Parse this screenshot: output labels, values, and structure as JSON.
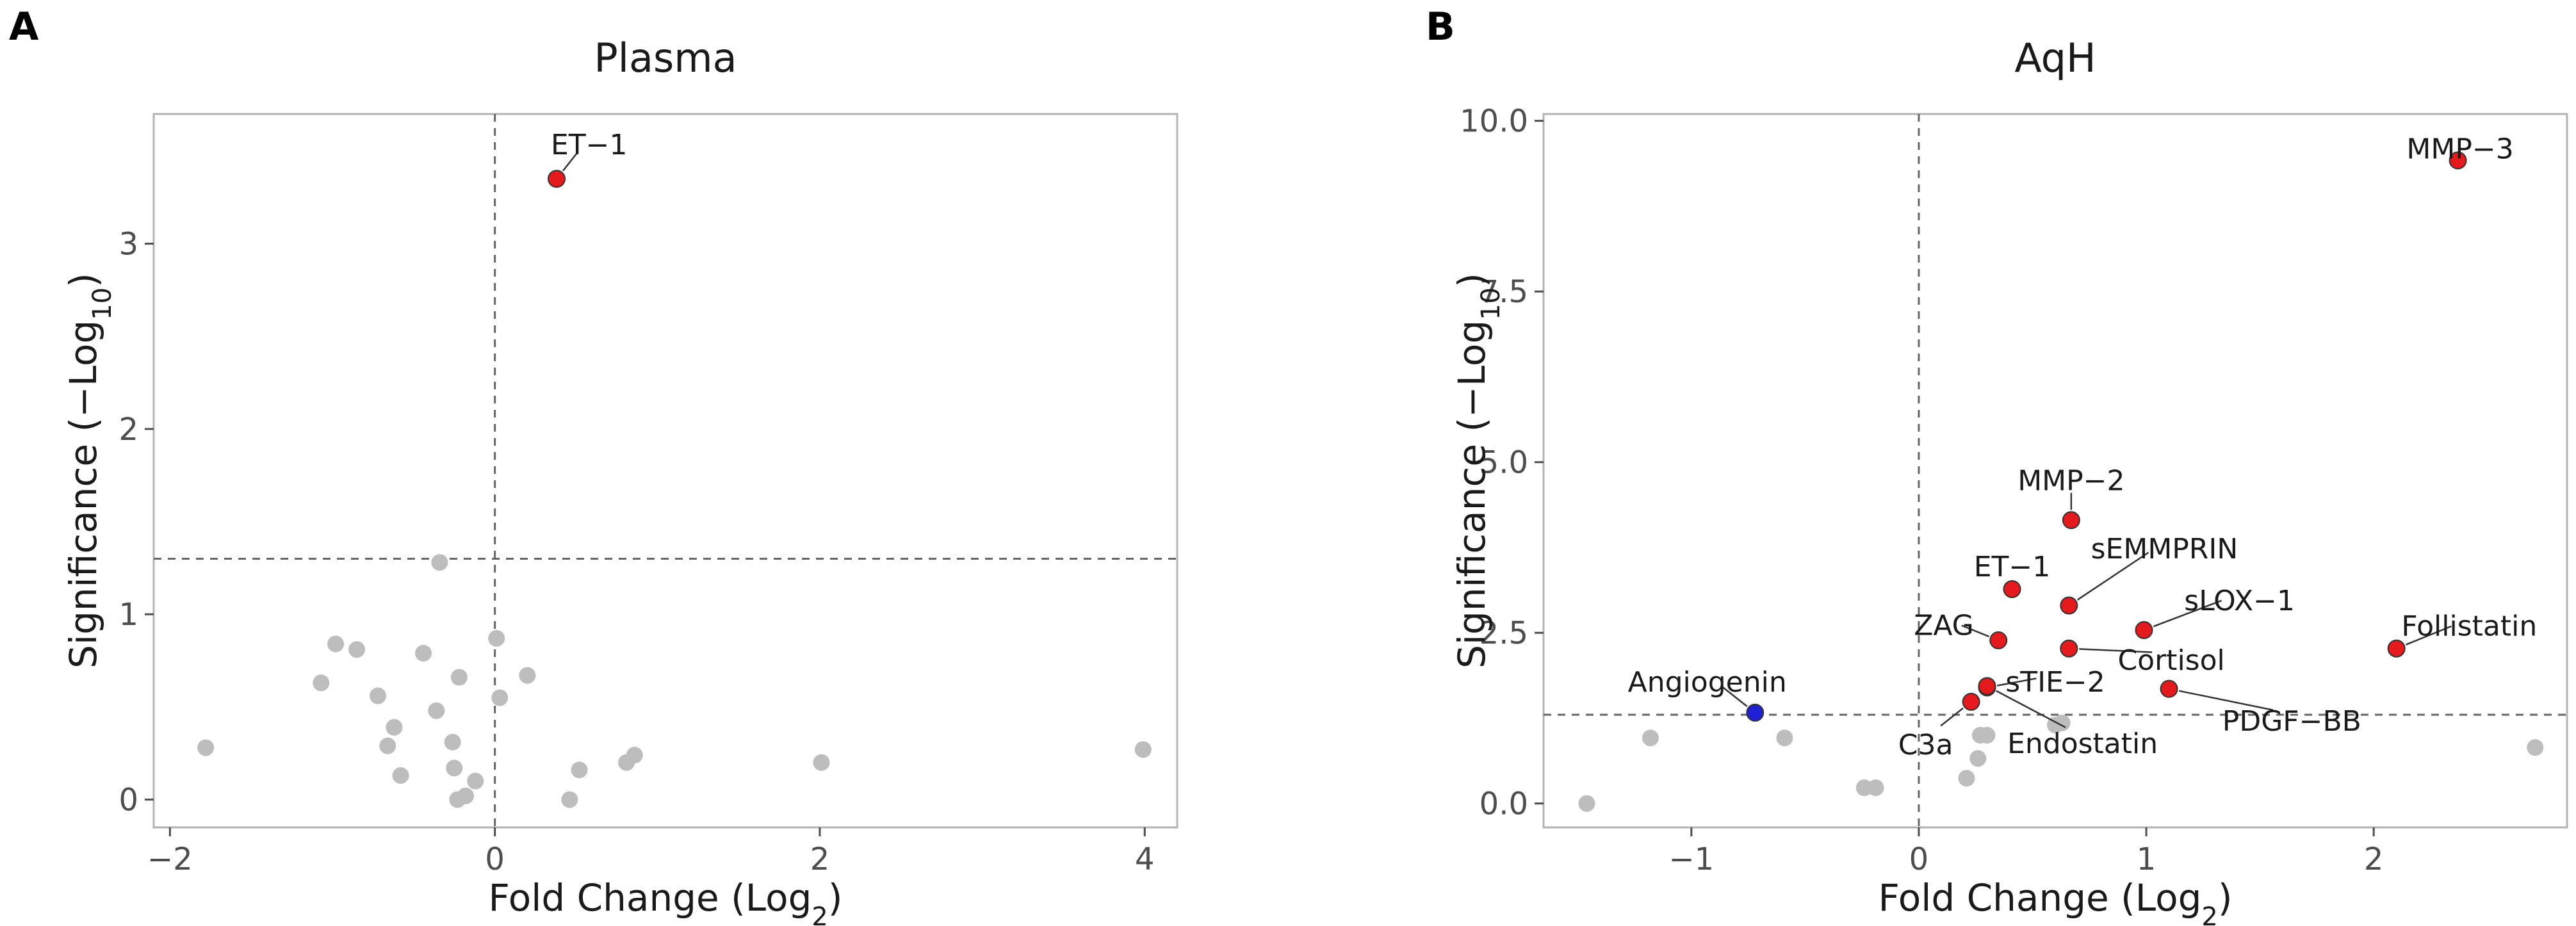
{
  "chart_data": [
    {
      "type": "scatter",
      "panel": "A",
      "title": "Plasma",
      "xlabel": "Fold Change (Log",
      "xlabel_sub": "2",
      "ylabel": "Significance (−Log",
      "ylabel_sub": "10",
      "xlim": [
        -2.1,
        4.2
      ],
      "ylim": [
        -0.15,
        3.7
      ],
      "xticks": [
        -2,
        0,
        2,
        4
      ],
      "yticks": [
        0,
        1,
        2,
        3
      ],
      "xtick_labels": [
        "−2",
        "0",
        "2",
        "4"
      ],
      "ytick_labels": [
        "0",
        "1",
        "2",
        "3"
      ],
      "hline": 1.3,
      "vline": 0,
      "grid": false,
      "colors": {
        "ns": "#bdbdbd",
        "up": "#e41a1c",
        "down": "#1f1fd6"
      },
      "points": [
        {
          "x": 0.38,
          "y": 3.35,
          "group": "up",
          "label": "ET−1",
          "lx": 0.58,
          "ly": 3.53
        },
        {
          "x": -1.78,
          "y": 0.28,
          "group": "ns"
        },
        {
          "x": -1.07,
          "y": 0.63,
          "group": "ns"
        },
        {
          "x": -0.98,
          "y": 0.84,
          "group": "ns"
        },
        {
          "x": -0.85,
          "y": 0.81,
          "group": "ns"
        },
        {
          "x": -0.72,
          "y": 0.56,
          "group": "ns"
        },
        {
          "x": -0.66,
          "y": 0.29,
          "group": "ns"
        },
        {
          "x": -0.62,
          "y": 0.39,
          "group": "ns"
        },
        {
          "x": -0.58,
          "y": 0.13,
          "group": "ns"
        },
        {
          "x": -0.44,
          "y": 0.79,
          "group": "ns"
        },
        {
          "x": -0.36,
          "y": 0.48,
          "group": "ns"
        },
        {
          "x": -0.34,
          "y": 1.28,
          "group": "ns"
        },
        {
          "x": -0.26,
          "y": 0.31,
          "group": "ns"
        },
        {
          "x": -0.25,
          "y": 0.17,
          "group": "ns"
        },
        {
          "x": -0.22,
          "y": 0.66,
          "group": "ns"
        },
        {
          "x": -0.23,
          "y": 0.0,
          "group": "ns"
        },
        {
          "x": -0.18,
          "y": 0.02,
          "group": "ns"
        },
        {
          "x": -0.12,
          "y": 0.1,
          "group": "ns"
        },
        {
          "x": 0.01,
          "y": 0.87,
          "group": "ns"
        },
        {
          "x": 0.03,
          "y": 0.55,
          "group": "ns"
        },
        {
          "x": 0.2,
          "y": 0.67,
          "group": "ns"
        },
        {
          "x": 0.46,
          "y": 0.0,
          "group": "ns"
        },
        {
          "x": 0.52,
          "y": 0.16,
          "group": "ns"
        },
        {
          "x": 0.81,
          "y": 0.2,
          "group": "ns"
        },
        {
          "x": 0.86,
          "y": 0.24,
          "group": "ns"
        },
        {
          "x": 2.01,
          "y": 0.2,
          "group": "ns"
        },
        {
          "x": 3.99,
          "y": 0.27,
          "group": "ns"
        }
      ]
    },
    {
      "type": "scatter",
      "panel": "B",
      "title": "AqH",
      "xlabel": "Fold Change (Log",
      "xlabel_sub": "2",
      "ylabel": "Significance (−Log",
      "ylabel_sub": "10",
      "xlim": [
        -1.65,
        2.85
      ],
      "ylim": [
        -0.35,
        10.1
      ],
      "xticks": [
        -1,
        0,
        1,
        2
      ],
      "yticks": [
        0,
        2.5,
        5,
        7.5,
        10
      ],
      "xtick_labels": [
        "−1",
        "0",
        "1",
        "2"
      ],
      "ytick_labels": [
        "0.0",
        "2.5",
        "5.0",
        "7.5",
        "10.0"
      ],
      "hline": 1.3,
      "vline": 0,
      "grid": false,
      "colors": {
        "ns": "#bdbdbd",
        "up": "#e41a1c",
        "down": "#1f1fd6"
      },
      "points": [
        {
          "x": 2.37,
          "y": 9.42,
          "group": "up",
          "label": "MMP−3",
          "lx": 2.38,
          "ly": 9.58
        },
        {
          "x": 0.67,
          "y": 4.15,
          "group": "up",
          "label": "MMP−2",
          "lx": 0.67,
          "ly": 4.72
        },
        {
          "x": 0.41,
          "y": 3.14,
          "group": "up",
          "label": "ET−1",
          "lx": 0.41,
          "ly": 3.46
        },
        {
          "x": 0.66,
          "y": 2.9,
          "group": "up",
          "label": "sEMMPRIN",
          "lx": 1.08,
          "ly": 3.72
        },
        {
          "x": 0.99,
          "y": 2.54,
          "group": "up",
          "label": "sLOX−1",
          "lx": 1.41,
          "ly": 2.96
        },
        {
          "x": 2.1,
          "y": 2.27,
          "group": "up",
          "label": "Follistatin",
          "lx": 2.42,
          "ly": 2.59
        },
        {
          "x": 0.35,
          "y": 2.39,
          "group": "up",
          "label": "ZAG",
          "lx": 0.11,
          "ly": 2.6
        },
        {
          "x": 0.66,
          "y": 2.27,
          "group": "up",
          "label": "Cortisol",
          "lx": 1.11,
          "ly": 2.09
        },
        {
          "x": 0.3,
          "y": 1.7,
          "group": "up",
          "label": "sTIE−2",
          "lx": 0.6,
          "ly": 1.77
        },
        {
          "x": 0.23,
          "y": 1.49,
          "group": "up",
          "label": "C3a",
          "lx": 0.03,
          "ly": 0.85
        },
        {
          "x": 0.3,
          "y": 1.72,
          "group": "up",
          "label": "Endostatin",
          "lx": 0.72,
          "ly": 0.87
        },
        {
          "x": 1.1,
          "y": 1.68,
          "group": "up",
          "label": "PDGF−BB",
          "lx": 1.64,
          "ly": 1.2
        },
        {
          "x": -0.72,
          "y": 1.33,
          "group": "down",
          "label": "Angiogenin",
          "lx": -0.93,
          "ly": 1.77
        },
        {
          "x": -1.46,
          "y": 0.0,
          "group": "ns"
        },
        {
          "x": -1.18,
          "y": 0.96,
          "group": "ns"
        },
        {
          "x": -0.59,
          "y": 0.96,
          "group": "ns"
        },
        {
          "x": -0.24,
          "y": 0.23,
          "group": "ns"
        },
        {
          "x": -0.19,
          "y": 0.23,
          "group": "ns"
        },
        {
          "x": 0.21,
          "y": 0.37,
          "group": "ns"
        },
        {
          "x": 0.26,
          "y": 0.66,
          "group": "ns"
        },
        {
          "x": 0.27,
          "y": 1.0,
          "group": "ns"
        },
        {
          "x": 0.3,
          "y": 1.0,
          "group": "ns"
        },
        {
          "x": 0.6,
          "y": 1.15,
          "group": "ns"
        },
        {
          "x": 0.63,
          "y": 1.18,
          "group": "ns"
        },
        {
          "x": 2.71,
          "y": 0.82,
          "group": "ns"
        }
      ]
    }
  ]
}
